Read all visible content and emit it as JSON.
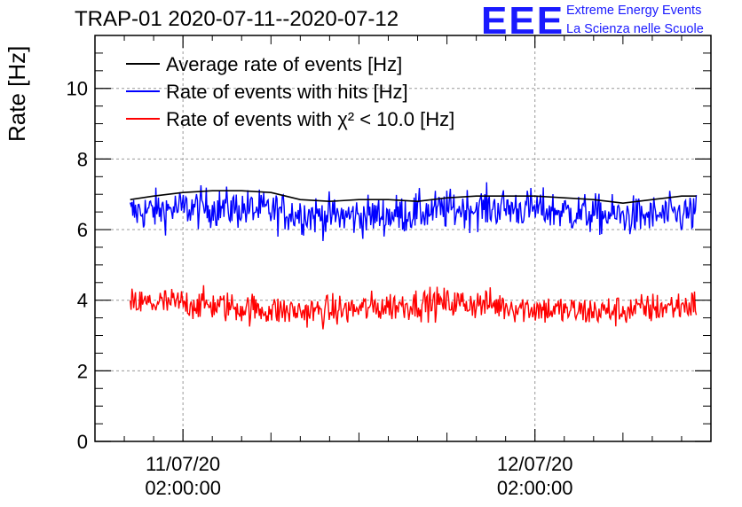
{
  "title": "TRAP-01 2020-07-11--2020-07-12",
  "logo": {
    "letters": "EEE",
    "line1": "Extreme Energy Events",
    "line2": "La Scienza nelle Scuole"
  },
  "colors": {
    "average": "#000000",
    "hits": "#0000ff",
    "chi2": "#ff0000",
    "logo": "#1a1aff",
    "grid": "#999999"
  },
  "chart_data": {
    "type": "line",
    "title": "TRAP-01 2020-07-11--2020-07-12",
    "ylabel": "Rate [Hz]",
    "xlabel": "",
    "ylim": [
      0,
      11.5
    ],
    "yticks": [
      0,
      2,
      4,
      6,
      8,
      10
    ],
    "xlim_hours": [
      -6,
      36
    ],
    "xticks": [
      {
        "hour": 0,
        "line1": "11/07/20",
        "line2": "02:00:00"
      },
      {
        "hour": 24,
        "line1": "12/07/20",
        "line2": "02:00:00"
      }
    ],
    "grid": true,
    "legend_position": "top-left",
    "series": [
      {
        "name": "Average rate of events [Hz]",
        "color": "#000000",
        "style": "smooth",
        "x_hours": [
          -3.6,
          -2,
          0,
          2,
          4,
          6,
          8,
          10,
          12,
          14,
          16,
          18,
          20,
          22,
          24,
          26,
          28,
          30,
          32,
          34,
          35.0
        ],
        "values": [
          6.85,
          6.95,
          7.05,
          7.1,
          7.1,
          7.05,
          6.85,
          6.8,
          6.85,
          6.85,
          6.8,
          6.9,
          6.95,
          6.95,
          6.95,
          6.9,
          6.85,
          6.75,
          6.85,
          6.95,
          6.95
        ]
      },
      {
        "name": "Rate of events with hits [Hz]",
        "color": "#0000ff",
        "style": "noisy",
        "x_hours": [
          -3.6,
          35.0
        ],
        "mean": 6.5,
        "band": [
          5.2,
          7.5
        ]
      },
      {
        "name": "Rate of events with χ² < 10.0 [Hz]",
        "color": "#ff0000",
        "style": "noisy",
        "x_hours": [
          -3.6,
          35.0
        ],
        "mean": 3.8,
        "band": [
          2.9,
          4.7
        ]
      }
    ]
  }
}
